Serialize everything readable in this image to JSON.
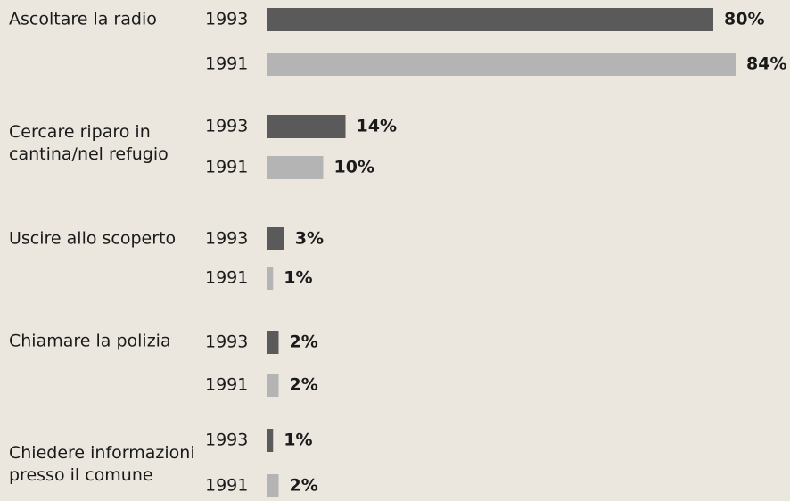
{
  "chart_data": {
    "type": "bar",
    "orientation": "horizontal",
    "categories": [
      "Ascoltare la radio",
      "Cercare riparo in\ncantina/nel refugio",
      "Uscire allo scoperto",
      "Chiamare la polizia",
      "Chiedere informazioni\npresso il comune"
    ],
    "series": [
      {
        "name": "1993",
        "color": "#5a5a5a",
        "values": [
          80,
          14,
          3,
          2,
          1
        ],
        "value_labels": [
          "80%",
          "14%",
          "3%",
          "2%",
          "1%"
        ]
      },
      {
        "name": "1991",
        "color": "#b4b4b4",
        "values": [
          84,
          10,
          1,
          2,
          2
        ],
        "value_labels": [
          "84%",
          "10%",
          "1%",
          "2%",
          "2%"
        ]
      }
    ]
  }
}
